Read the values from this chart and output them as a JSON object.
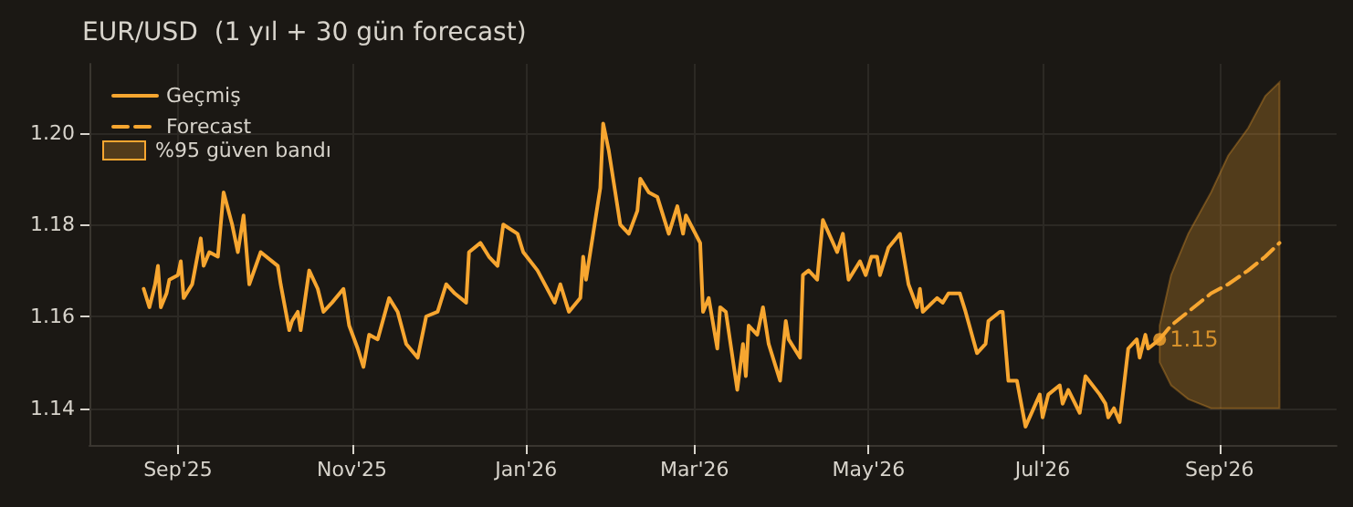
{
  "chart_data": {
    "type": "line",
    "title": "EUR/USD  (1 yıl + 30 gün forecast)",
    "xlim": [
      "2025-08-01",
      "2026-10-12"
    ],
    "xticks": [
      {
        "value": "2025-09-01",
        "label": "Sep'25"
      },
      {
        "value": "2025-11-01",
        "label": "Nov'25"
      },
      {
        "value": "2026-01-01",
        "label": "Jan'26"
      },
      {
        "value": "2026-03-01",
        "label": "Mar'26"
      },
      {
        "value": "2026-05-01",
        "label": "May'26"
      },
      {
        "value": "2026-07-01",
        "label": "Jul'26"
      },
      {
        "value": "2026-09-01",
        "label": "Sep'26"
      }
    ],
    "ylim": [
      1.132,
      1.215
    ],
    "yticks": [
      1.14,
      1.16,
      1.18,
      {
        "value": 1.2,
        "label": "1.20"
      }
    ],
    "grid": true,
    "legend": "top left",
    "marker": "none",
    "series": [
      {
        "name": "Geçmiş",
        "color": "#f7a630",
        "line_style": "solid",
        "x": [
          "2025-08-20",
          "2025-08-22",
          "2025-08-24",
          "2025-08-25",
          "2025-08-26",
          "2025-08-28",
          "2025-08-29",
          "2025-09-01",
          "2025-09-02",
          "2025-09-03",
          "2025-09-06",
          "2025-09-09",
          "2025-09-10",
          "2025-09-12",
          "2025-09-15",
          "2025-09-17",
          "2025-09-20",
          "2025-09-22",
          "2025-09-24",
          "2025-09-26",
          "2025-09-30",
          "2025-10-06",
          "2025-10-07",
          "2025-10-10",
          "2025-10-11",
          "2025-10-13",
          "2025-10-14",
          "2025-10-17",
          "2025-10-20",
          "2025-10-22",
          "2025-10-25",
          "2025-10-29",
          "2025-10-31",
          "2025-11-03",
          "2025-11-05",
          "2025-11-07",
          "2025-11-10",
          "2025-11-14",
          "2025-11-17",
          "2025-11-20",
          "2025-11-24",
          "2025-11-27",
          "2025-12-01",
          "2025-12-04",
          "2025-12-07",
          "2025-12-11",
          "2025-12-12",
          "2025-12-16",
          "2025-12-19",
          "2025-12-22",
          "2025-12-24",
          "2025-12-29",
          "2025-12-31",
          "2026-01-05",
          "2026-01-11",
          "2026-01-13",
          "2026-01-16",
          "2026-01-20",
          "2026-01-21",
          "2026-01-22",
          "2026-01-27",
          "2026-01-28",
          "2026-01-30",
          "2026-02-03",
          "2026-02-06",
          "2026-02-09",
          "2026-02-10",
          "2026-02-13",
          "2026-02-16",
          "2026-02-20",
          "2026-02-23",
          "2026-02-25",
          "2026-02-26",
          "2026-03-03",
          "2026-03-04",
          "2026-03-06",
          "2026-03-09",
          "2026-03-10",
          "2026-03-12",
          "2026-03-16",
          "2026-03-18",
          "2026-03-19",
          "2026-03-20",
          "2026-03-23",
          "2026-03-25",
          "2026-03-27",
          "2026-03-31",
          "2026-04-02",
          "2026-04-03",
          "2026-04-07",
          "2026-04-08",
          "2026-04-10",
          "2026-04-13",
          "2026-04-15",
          "2026-04-20",
          "2026-04-22",
          "2026-04-24",
          "2026-04-28",
          "2026-04-30",
          "2026-05-02",
          "2026-05-04",
          "2026-05-05",
          "2026-05-08",
          "2026-05-12",
          "2026-05-15",
          "2026-05-18",
          "2026-05-19",
          "2026-05-20",
          "2026-05-25",
          "2026-05-27",
          "2026-05-29",
          "2026-06-02",
          "2026-06-04",
          "2026-06-08",
          "2026-06-11",
          "2026-06-12",
          "2026-06-16",
          "2026-06-17",
          "2026-06-19",
          "2026-06-22",
          "2026-06-25",
          "2026-06-30",
          "2026-07-01",
          "2026-07-03",
          "2026-07-07",
          "2026-07-08",
          "2026-07-10",
          "2026-07-14",
          "2026-07-16",
          "2026-07-21",
          "2026-07-23",
          "2026-07-24",
          "2026-07-26",
          "2026-07-28",
          "2026-07-31",
          "2026-08-03",
          "2026-08-04",
          "2026-08-06",
          "2026-08-07",
          "2026-08-11"
        ],
        "values": [
          1.166,
          1.162,
          1.167,
          1.171,
          1.162,
          1.165,
          1.168,
          1.169,
          1.172,
          1.164,
          1.167,
          1.177,
          1.171,
          1.174,
          1.173,
          1.187,
          1.18,
          1.174,
          1.182,
          1.167,
          1.174,
          1.171,
          1.167,
          1.157,
          1.159,
          1.161,
          1.157,
          1.17,
          1.166,
          1.161,
          1.163,
          1.166,
          1.158,
          1.153,
          1.149,
          1.156,
          1.155,
          1.164,
          1.161,
          1.154,
          1.151,
          1.16,
          1.161,
          1.167,
          1.165,
          1.163,
          1.174,
          1.176,
          1.173,
          1.171,
          1.18,
          1.178,
          1.174,
          1.17,
          1.163,
          1.167,
          1.161,
          1.164,
          1.173,
          1.168,
          1.188,
          1.202,
          1.196,
          1.18,
          1.178,
          1.183,
          1.19,
          1.187,
          1.186,
          1.178,
          1.184,
          1.178,
          1.182,
          1.176,
          1.161,
          1.164,
          1.153,
          1.162,
          1.161,
          1.144,
          1.154,
          1.147,
          1.158,
          1.156,
          1.162,
          1.154,
          1.146,
          1.159,
          1.155,
          1.151,
          1.169,
          1.17,
          1.168,
          1.181,
          1.174,
          1.178,
          1.168,
          1.172,
          1.169,
          1.173,
          1.173,
          1.169,
          1.175,
          1.178,
          1.167,
          1.162,
          1.166,
          1.161,
          1.164,
          1.163,
          1.165,
          1.165,
          1.161,
          1.152,
          1.154,
          1.159,
          1.161,
          1.161,
          1.146,
          1.146,
          1.136,
          1.143,
          1.138,
          1.143,
          1.145,
          1.141,
          1.144,
          1.139,
          1.147,
          1.143,
          1.141,
          1.138,
          1.14,
          1.137,
          1.153,
          1.155,
          1.151,
          1.156,
          1.153,
          1.155
        ]
      },
      {
        "name": "Forecast",
        "color": "#f7a630",
        "line_style": "dashed",
        "x": [
          "2026-08-11",
          "2026-08-15",
          "2026-08-21",
          "2026-08-29",
          "2026-09-04",
          "2026-09-11",
          "2026-09-17",
          "2026-09-22"
        ],
        "values": [
          1.155,
          1.158,
          1.161,
          1.165,
          1.167,
          1.17,
          1.173,
          1.176
        ],
        "lower": [
          1.15,
          1.145,
          1.142,
          1.14,
          1.14,
          1.14,
          1.14,
          1.14
        ],
        "upper": [
          1.158,
          1.169,
          1.178,
          1.187,
          1.195,
          1.201,
          1.208,
          1.211
        ]
      }
    ],
    "annotations": [
      "%95 güven bandı",
      {
        "text": "1.15",
        "x": "2026-08-11",
        "y": 1.155
      }
    ]
  }
}
